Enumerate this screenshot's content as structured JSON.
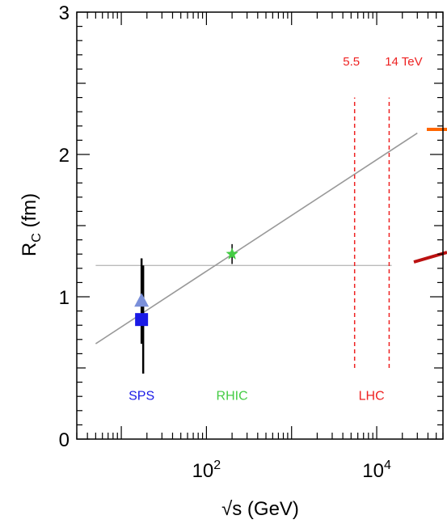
{
  "chart_data": {
    "type": "scatter",
    "xlabel": "√s (GeV)",
    "ylabel": "R_C (fm)",
    "x_scale": "log",
    "xlim": [
      3,
      60000
    ],
    "ylim": [
      0,
      3
    ],
    "x_ticks": [
      {
        "value": 100,
        "base": "10",
        "exp": "2"
      },
      {
        "value": 10000,
        "base": "10",
        "exp": "4"
      }
    ],
    "y_ticks": [
      {
        "value": 0,
        "label": "0"
      },
      {
        "value": 1,
        "label": "1"
      },
      {
        "value": 2,
        "label": "2"
      },
      {
        "value": 3,
        "label": "3"
      }
    ],
    "points": [
      {
        "marker": "square",
        "x": 17.3,
        "y": 0.84,
        "err_low": 0.38,
        "err_high": 0.38,
        "color": "#1a1ae6"
      },
      {
        "marker": "triangle",
        "x": 17.3,
        "y": 0.97,
        "err_low": 0.3,
        "err_high": 0.3,
        "color": "#7a8fd9"
      },
      {
        "marker": "star",
        "x": 200,
        "y": 1.3,
        "err_low": 0.07,
        "err_high": 0.07,
        "color": "#44cc44"
      }
    ],
    "fit_line": {
      "x": [
        5,
        30000
      ],
      "y": [
        0.67,
        2.15
      ],
      "color": "#999999"
    },
    "reference_line": {
      "y": 1.22,
      "x": [
        5,
        15000
      ],
      "color": "#bbbbbb"
    },
    "lhc_lines": [
      {
        "x": 5500,
        "label": "5.5",
        "y_from": 0.5,
        "y_to": 2.4
      },
      {
        "x": 14000,
        "label": "14 TeV",
        "y_from": 0.5,
        "y_to": 2.4
      }
    ],
    "region_labels": [
      {
        "text": "SPS",
        "x": 17.3,
        "color": "#1a1ae6"
      },
      {
        "text": "RHIC",
        "x": 200,
        "color": "#44cc44"
      },
      {
        "text": "LHC",
        "x": 8700,
        "color": "#ee2222"
      }
    ],
    "region_label_y": 0.31,
    "colors": {
      "lhc": "#ee2222",
      "orange_mark": "#ff6600",
      "darkred_mark": "#bb1111"
    }
  }
}
